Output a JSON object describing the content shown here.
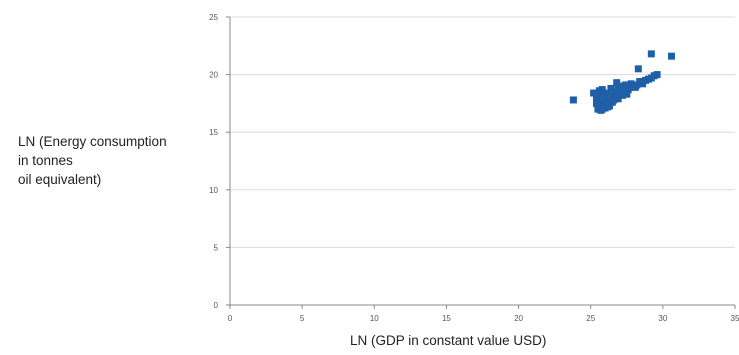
{
  "chart_data": {
    "type": "scatter",
    "title": "",
    "xlabel": "LN (GDP in constant value USD)",
    "ylabel_lines": [
      "LN (Energy consumption",
      "in tonnes",
      "oil equivalent)"
    ],
    "xlim": [
      0,
      35
    ],
    "ylim": [
      0,
      25
    ],
    "xticks": [
      "0",
      "5",
      "10",
      "15",
      "20",
      "25",
      "30",
      "35"
    ],
    "yticks": [
      "0",
      "5",
      "10",
      "15",
      "20",
      "25"
    ],
    "grid": "horizontal",
    "legend": "none",
    "marker_color": "#1f5fa8",
    "x": [
      23.8,
      25.2,
      25.4,
      25.5,
      25.6,
      25.7,
      25.8,
      25.9,
      26.0,
      26.1,
      26.2,
      26.3,
      26.4,
      26.5,
      26.6,
      26.7,
      26.8,
      26.9,
      27.0,
      27.1,
      27.2,
      27.3,
      27.4,
      27.5,
      27.6,
      27.8,
      28.0,
      28.2,
      28.4,
      28.6,
      28.8,
      29.0,
      29.2,
      29.4,
      29.6,
      25.5,
      25.6,
      25.8,
      26.0,
      26.2,
      26.4,
      26.6,
      26.9,
      27.2,
      27.5,
      27.8,
      28.1,
      28.4,
      25.7,
      26.0,
      26.3,
      26.6,
      26.9,
      27.1,
      27.4,
      25.4,
      25.9,
      26.3,
      26.8,
      29.2,
      30.6,
      28.3
    ],
    "y": [
      17.8,
      18.4,
      18.0,
      17.3,
      17.6,
      18.2,
      17.0,
      17.5,
      17.9,
      18.3,
      17.2,
      17.7,
      18.0,
      17.6,
      18.2,
      18.5,
      18.0,
      17.9,
      18.4,
      18.6,
      18.2,
      18.8,
      18.5,
      18.3,
      18.7,
      19.0,
      18.9,
      19.1,
      19.3,
      19.2,
      19.5,
      19.6,
      19.7,
      19.9,
      20.0,
      17.0,
      18.6,
      18.7,
      17.4,
      18.1,
      18.8,
      17.8,
      18.9,
      19.0,
      18.4,
      19.2,
      18.9,
      19.4,
      16.9,
      17.1,
      17.3,
      18.3,
      18.1,
      18.9,
      19.1,
      17.5,
      18.4,
      17.4,
      19.3,
      21.8,
      21.6,
      20.5
    ]
  }
}
